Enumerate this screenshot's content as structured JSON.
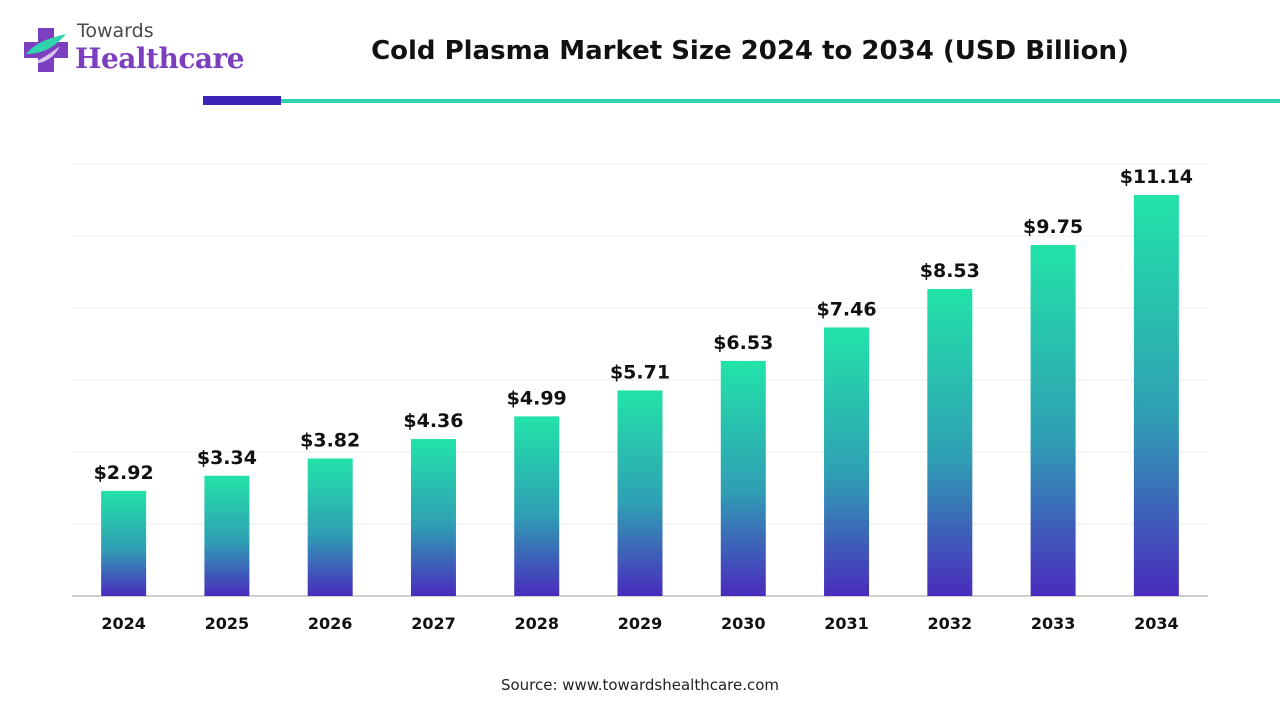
{
  "brand": {
    "small": "Towards",
    "big": "Healthcare"
  },
  "title": "Cold Plasma Market Size 2024 to 2034 (USD Billion)",
  "source": "Source: www.towardshealthcare.com",
  "colors": {
    "bar_top": "#22e3a8",
    "bar_mid": "#2f9fb4",
    "bar_bottom": "#4a2bbd",
    "rule_dark": "#3b23b8",
    "rule_teal": "#2fd3ad"
  },
  "chart_data": {
    "type": "bar",
    "categories": [
      "2024",
      "2025",
      "2026",
      "2027",
      "2028",
      "2029",
      "2030",
      "2031",
      "2032",
      "2033",
      "2034"
    ],
    "values": [
      2.92,
      3.34,
      3.82,
      4.36,
      4.99,
      5.71,
      6.53,
      7.46,
      8.53,
      9.75,
      11.14
    ],
    "labels": [
      "$2.92",
      "$3.34",
      "$3.82",
      "$4.36",
      "$4.99",
      "$5.71",
      "$6.53",
      "$7.46",
      "$8.53",
      "$9.75",
      "$11.14"
    ],
    "title": "Cold Plasma Market Size 2024 to 2034 (USD Billion)",
    "xlabel": "",
    "ylabel": "",
    "ylim": [
      0,
      12
    ],
    "grid": true,
    "legend": "none"
  }
}
